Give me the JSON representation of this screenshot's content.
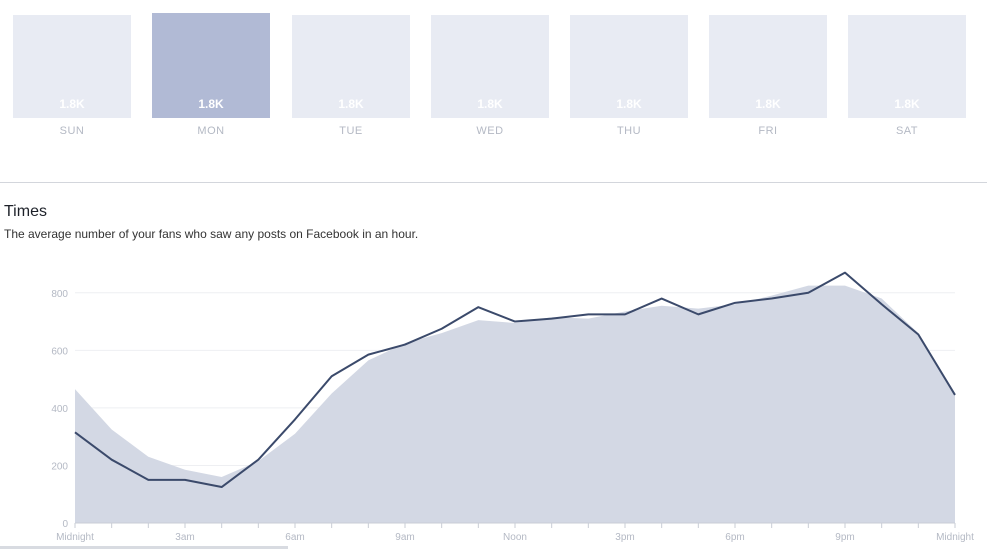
{
  "days": [
    {
      "label": "SUN",
      "value": "1.8K",
      "selected": false
    },
    {
      "label": "MON",
      "value": "1.8K",
      "selected": true
    },
    {
      "label": "TUE",
      "value": "1.8K",
      "selected": false
    },
    {
      "label": "WED",
      "value": "1.8K",
      "selected": false
    },
    {
      "label": "THU",
      "value": "1.8K",
      "selected": false
    },
    {
      "label": "FRI",
      "value": "1.8K",
      "selected": false
    },
    {
      "label": "SAT",
      "value": "1.8K",
      "selected": false
    }
  ],
  "times": {
    "title": "Times",
    "subtitle": "The average number of your fans who saw any posts on Facebook in an hour."
  },
  "chart_data": {
    "type": "area",
    "x": [
      0,
      1,
      2,
      3,
      4,
      5,
      6,
      7,
      8,
      9,
      10,
      11,
      12,
      13,
      14,
      15,
      16,
      17,
      18,
      19,
      20,
      21,
      22,
      23,
      24
    ],
    "xticks": [
      {
        "x": 0,
        "label": "Midnight"
      },
      {
        "x": 3,
        "label": "3am"
      },
      {
        "x": 6,
        "label": "6am"
      },
      {
        "x": 9,
        "label": "9am"
      },
      {
        "x": 12,
        "label": "Noon"
      },
      {
        "x": 15,
        "label": "3pm"
      },
      {
        "x": 18,
        "label": "6pm"
      },
      {
        "x": 21,
        "label": "9pm"
      },
      {
        "x": 24,
        "label": "Midnight"
      }
    ],
    "yticks": [
      0,
      200,
      400,
      600,
      800
    ],
    "ylim": [
      0,
      900
    ],
    "grid": true,
    "series": [
      {
        "values": [
          465,
          325,
          230,
          185,
          160,
          215,
          310,
          450,
          565,
          625,
          660,
          705,
          695,
          715,
          710,
          735,
          755,
          745,
          760,
          790,
          825,
          825,
          780,
          660,
          450
        ],
        "color": "#d3d8e4",
        "style": "area"
      },
      {
        "values": [
          315,
          220,
          150,
          150,
          125,
          220,
          360,
          510,
          585,
          620,
          675,
          750,
          700,
          710,
          725,
          725,
          780,
          725,
          765,
          780,
          800,
          870,
          760,
          655,
          445
        ],
        "color": "#3b4a6b",
        "style": "line"
      }
    ]
  }
}
